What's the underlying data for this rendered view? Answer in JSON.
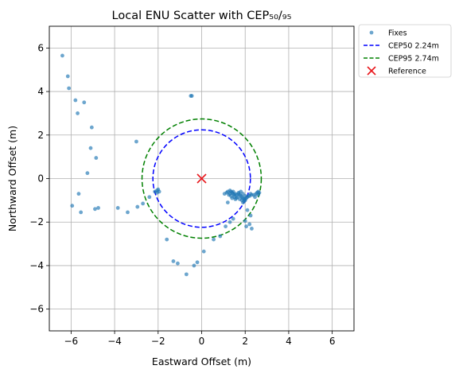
{
  "chart_data": {
    "type": "scatter",
    "title": "Local ENU Scatter with CEP₅₀/₉₅",
    "xlabel": "Eastward Offset (m)",
    "ylabel": "Northward Offset (m)",
    "xlim": [
      -7.0,
      7.0
    ],
    "ylim": [
      -7.0,
      7.0
    ],
    "xticks": [
      -6,
      -4,
      -2,
      0,
      2,
      4,
      6
    ],
    "yticks": [
      -6,
      -4,
      -2,
      0,
      2,
      4,
      6
    ],
    "xtick_labels": [
      "−6",
      "−4",
      "−2",
      "0",
      "2",
      "4",
      "6"
    ],
    "ytick_labels": [
      "−6",
      "−4",
      "−2",
      "0",
      "2",
      "4",
      "6"
    ],
    "grid": true,
    "legend_position": "outside-top-right",
    "legend": [
      {
        "label": "Fixes",
        "kind": "marker",
        "color": "#1f77b4"
      },
      {
        "label": "CEP50 2.24m",
        "kind": "dashed-line",
        "color": "#0000ff"
      },
      {
        "label": "CEP95 2.74m",
        "kind": "dashed-line",
        "color": "#008000"
      },
      {
        "label": "Reference",
        "kind": "x-marker",
        "color": "#e8161b"
      }
    ],
    "series": [
      {
        "name": "Fixes",
        "color": "#1f77b4",
        "points": [
          [
            -6.4,
            5.65
          ],
          [
            -6.15,
            4.7
          ],
          [
            -6.1,
            4.15
          ],
          [
            -5.8,
            3.6
          ],
          [
            -5.4,
            3.5
          ],
          [
            -5.7,
            3.0
          ],
          [
            -5.05,
            2.35
          ],
          [
            -5.1,
            1.4
          ],
          [
            -4.85,
            0.95
          ],
          [
            -5.25,
            0.25
          ],
          [
            -5.65,
            -0.7
          ],
          [
            -5.95,
            -1.25
          ],
          [
            -5.55,
            -1.55
          ],
          [
            -4.9,
            -1.4
          ],
          [
            -4.75,
            -1.35
          ],
          [
            -3.85,
            -1.35
          ],
          [
            -3.4,
            -1.55
          ],
          [
            -3.0,
            1.7
          ],
          [
            -2.95,
            -1.3
          ],
          [
            -2.7,
            -1.15
          ],
          [
            -2.4,
            -0.85
          ],
          [
            -2.15,
            -0.6
          ],
          [
            -2.05,
            -0.55
          ],
          [
            -2.0,
            -0.5
          ],
          [
            -2.05,
            -0.65
          ],
          [
            -1.95,
            -0.6
          ],
          [
            -0.5,
            3.8
          ],
          [
            -0.45,
            3.8
          ],
          [
            -1.6,
            -2.8
          ],
          [
            -1.3,
            -3.8
          ],
          [
            -1.1,
            -3.9
          ],
          [
            -0.7,
            -4.4
          ],
          [
            -0.35,
            -4.0
          ],
          [
            -0.2,
            -3.85
          ],
          [
            0.1,
            -3.35
          ],
          [
            0.55,
            -2.8
          ],
          [
            0.85,
            -2.65
          ],
          [
            1.1,
            -2.2
          ],
          [
            1.3,
            -2.0
          ],
          [
            1.45,
            -1.85
          ],
          [
            2.0,
            -1.95
          ],
          [
            2.05,
            -2.2
          ],
          [
            2.2,
            -2.1
          ],
          [
            2.3,
            -2.3
          ],
          [
            2.25,
            -1.7
          ],
          [
            2.1,
            -1.45
          ],
          [
            1.9,
            -1.1
          ],
          [
            2.0,
            -1.0
          ],
          [
            1.2,
            -1.1
          ],
          [
            1.05,
            -0.7
          ],
          [
            1.15,
            -0.65
          ],
          [
            1.2,
            -0.6
          ],
          [
            1.3,
            -0.55
          ],
          [
            1.35,
            -0.6
          ],
          [
            1.4,
            -0.65
          ],
          [
            1.45,
            -0.7
          ],
          [
            1.5,
            -0.75
          ],
          [
            1.55,
            -0.7
          ],
          [
            1.6,
            -0.75
          ],
          [
            1.65,
            -0.85
          ],
          [
            1.7,
            -0.7
          ],
          [
            1.75,
            -0.75
          ],
          [
            1.8,
            -0.8
          ],
          [
            1.85,
            -0.85
          ],
          [
            1.9,
            -0.9
          ],
          [
            1.95,
            -0.95
          ],
          [
            2.0,
            -0.95
          ],
          [
            2.05,
            -0.9
          ],
          [
            2.1,
            -0.85
          ],
          [
            2.15,
            -0.8
          ],
          [
            2.2,
            -0.8
          ],
          [
            2.3,
            -0.75
          ],
          [
            2.4,
            -0.75
          ],
          [
            2.5,
            -0.7
          ],
          [
            2.55,
            -0.65
          ],
          [
            2.6,
            -0.6
          ],
          [
            2.65,
            -0.65
          ],
          [
            2.6,
            -0.75
          ],
          [
            1.25,
            -0.75
          ],
          [
            1.35,
            -0.8
          ],
          [
            1.5,
            -0.85
          ],
          [
            1.6,
            -0.9
          ],
          [
            1.75,
            -0.95
          ],
          [
            1.85,
            -1.0
          ],
          [
            1.95,
            -1.05
          ],
          [
            1.55,
            -0.95
          ],
          [
            1.4,
            -0.9
          ],
          [
            1.7,
            -0.65
          ],
          [
            1.9,
            -0.7
          ],
          [
            1.3,
            -0.7
          ],
          [
            1.45,
            -0.6
          ],
          [
            1.8,
            -0.6
          ],
          [
            2.0,
            -0.8
          ],
          [
            2.25,
            -0.7
          ],
          [
            2.45,
            -0.85
          ]
        ]
      },
      {
        "name": "CEP50 2.24m",
        "type": "circle",
        "center": [
          0,
          0
        ],
        "radius": 2.24,
        "color": "#0000ff"
      },
      {
        "name": "CEP95 2.74m",
        "type": "circle",
        "center": [
          0,
          0
        ],
        "radius": 2.74,
        "color": "#008000"
      },
      {
        "name": "Reference",
        "type": "point",
        "points": [
          [
            0,
            0
          ]
        ],
        "color": "#e8161b"
      }
    ]
  }
}
